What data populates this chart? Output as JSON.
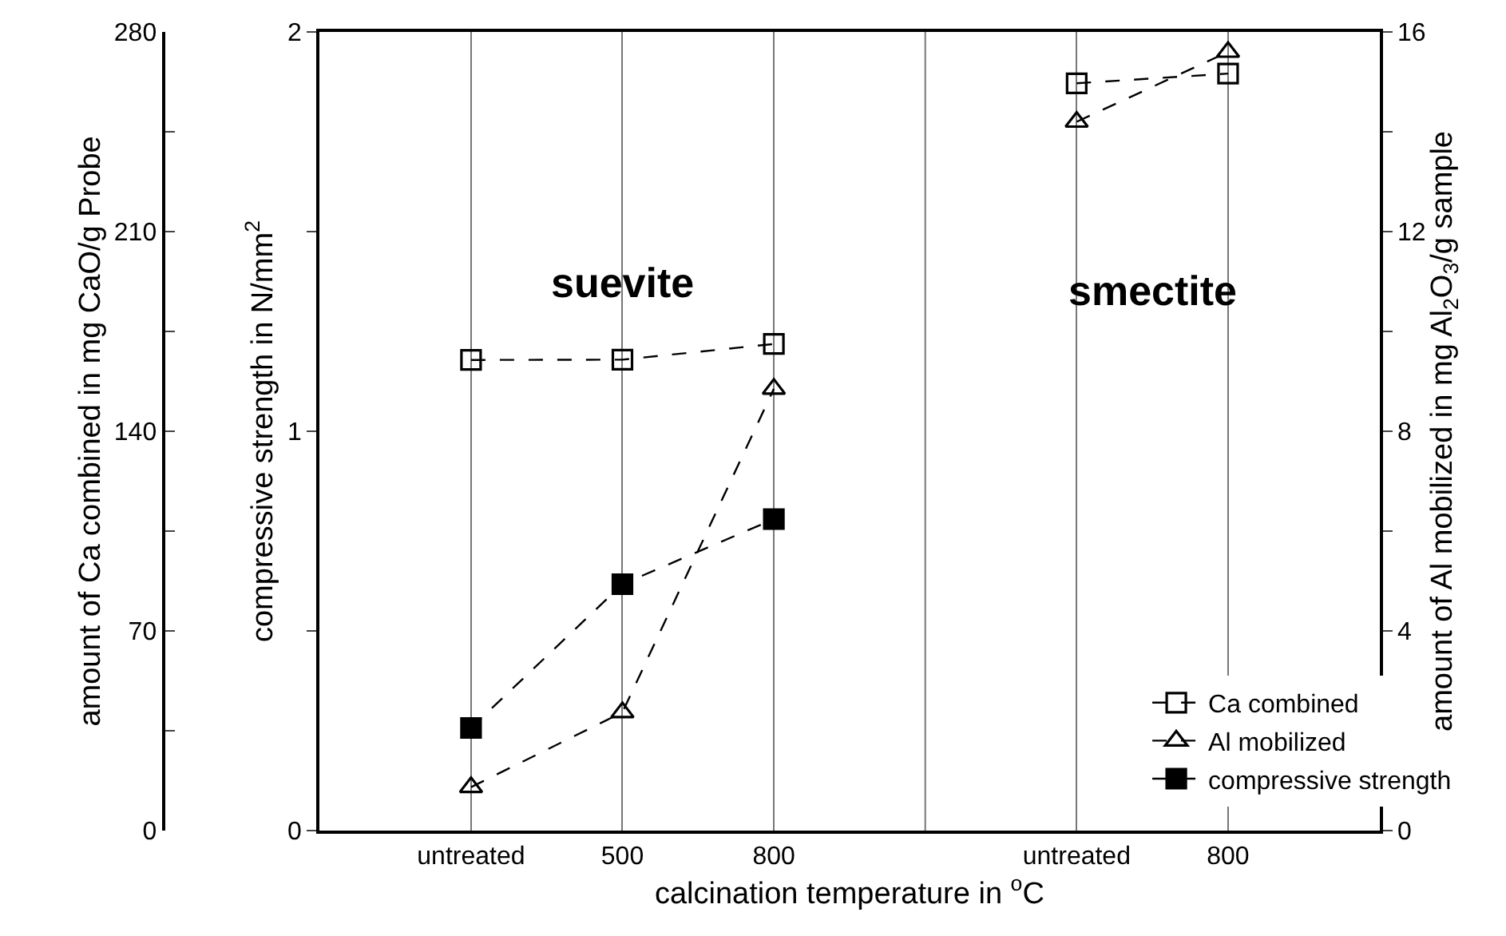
{
  "chart_data": {
    "type": "line",
    "xlabel": "calcination temperature in $^{o}$C",
    "ylabel": "compressive strength in N/mm$^{2}$",
    "y2label": "amount of Al mobilized in mg Al$_{2}$O$_{3}$/g sample",
    "y3label": "amount of Ca combined in mg CaO/g Probe",
    "categories": [
      "untreated",
      "500",
      "800",
      null,
      "untreated",
      "800"
    ],
    "series": [
      {
        "name": "Ca combined",
        "color": "#000000",
        "marker": "square",
        "line_style": "dashed",
        "axis": "y3",
        "values": [
          165,
          165.1,
          170.6,
          null,
          262,
          265.4
        ]
      },
      {
        "name": "Al mobilized",
        "color": "#000000",
        "marker": "triangle",
        "line_style": "dashed",
        "axis": "y2",
        "values": [
          0.87,
          2.37,
          8.85,
          null,
          14.2,
          15.6
        ]
      },
      {
        "name": "compressive strength",
        "color": "#000000",
        "marker": "square",
        "line_style": "dashed",
        "values": [
          0.257,
          0.617,
          0.78,
          null,
          null,
          null
        ]
      }
    ],
    "ylim": [
      0,
      2
    ],
    "yticks": [
      0,
      {
        "value": 0.5,
        "label": null
      },
      1,
      {
        "value": 1.5,
        "label": null
      },
      2
    ],
    "y3lim": [
      0,
      280
    ],
    "y3ticks": [
      0,
      {
        "value": 35,
        "label": null
      },
      70,
      {
        "value": 105,
        "label": null
      },
      140,
      {
        "value": 175,
        "label": null
      },
      210,
      {
        "value": 245,
        "label": null
      },
      280
    ],
    "y2lim": [
      0,
      16
    ],
    "y2ticks": [
      0,
      {
        "value": 2,
        "label": null
      },
      4,
      {
        "value": 6,
        "label": null
      },
      8,
      {
        "value": 10,
        "label": null
      },
      12,
      {
        "value": 14,
        "label": null
      },
      16
    ],
    "annotations": [
      "suevite",
      "smectite"
    ],
    "grid": "x",
    "legend": "bottom right"
  }
}
